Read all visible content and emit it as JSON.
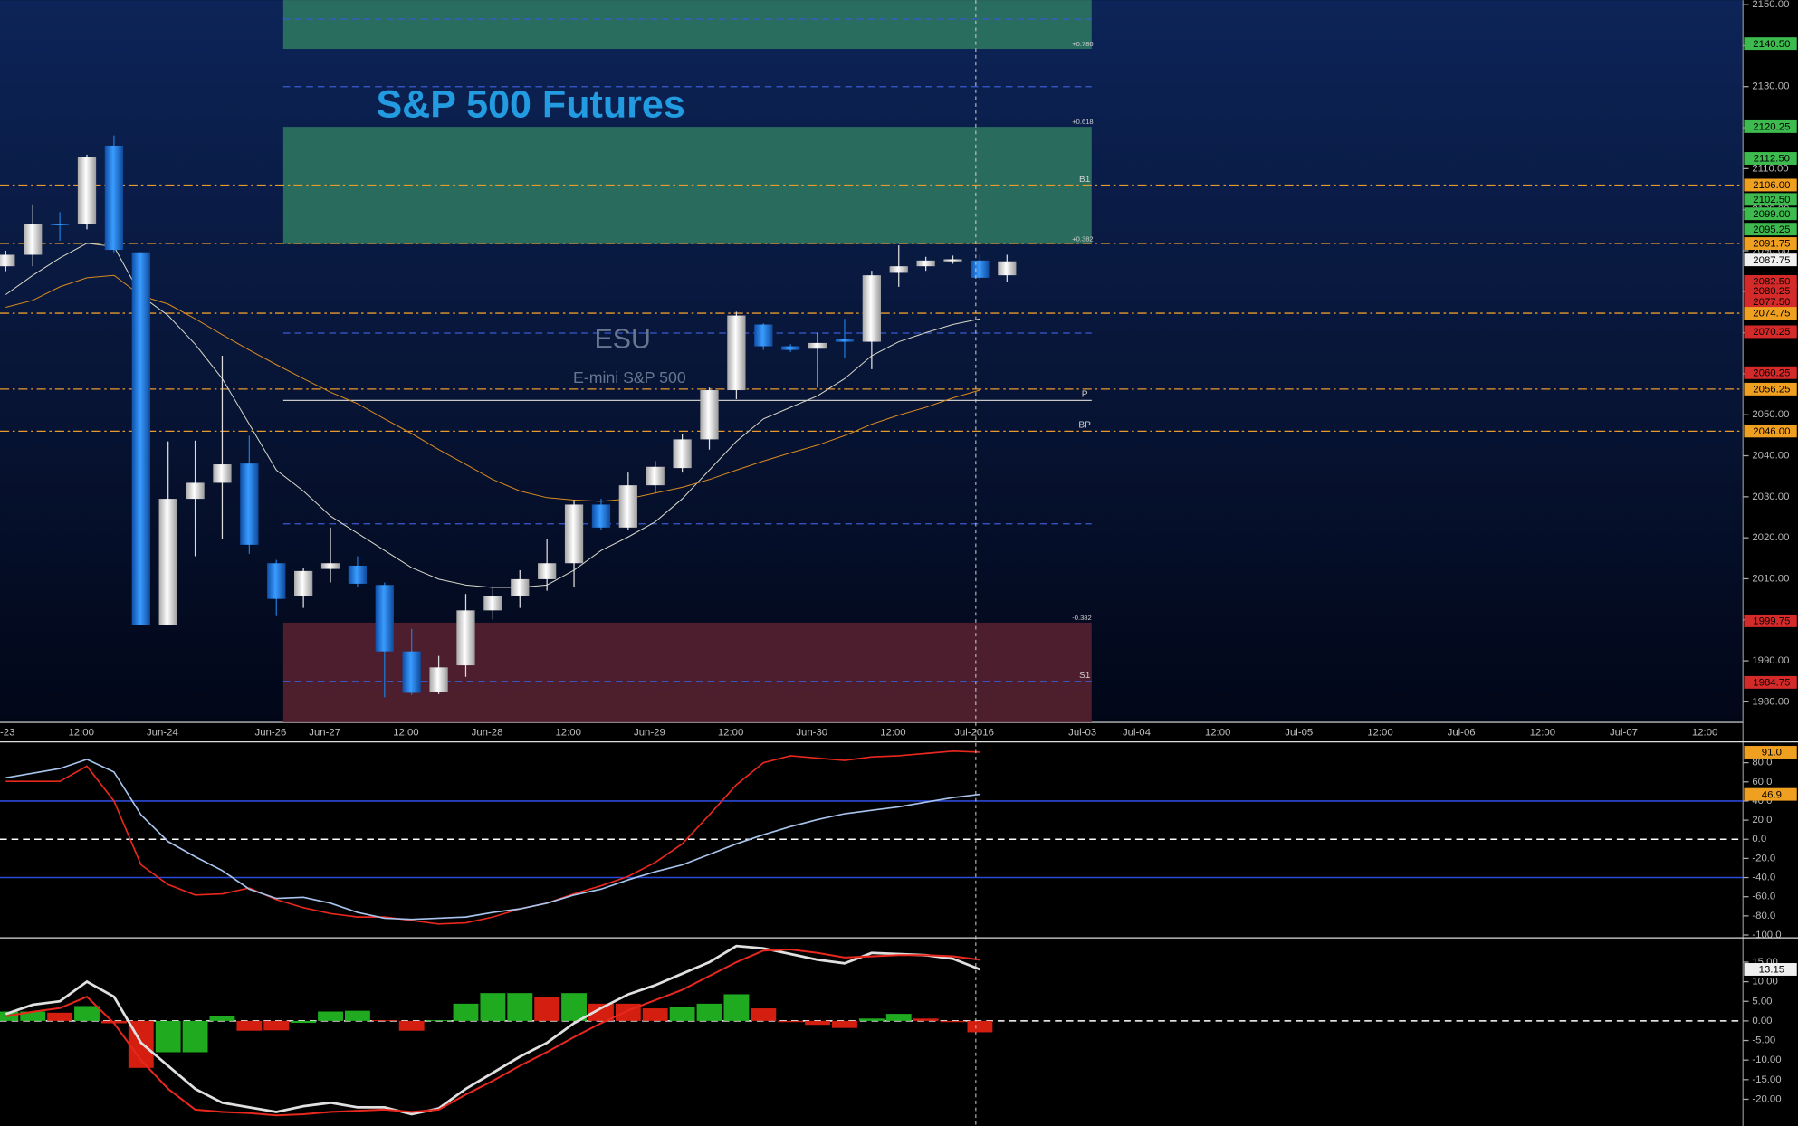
{
  "chart_data": [
    {
      "type": "candlestick",
      "title": "S&P 500 Futures",
      "symbol": "ESU",
      "subtitle": "E-mini S&P 500",
      "categories": [
        "-23",
        null,
        null,
        "12:00",
        null,
        null,
        "Jun-24",
        null,
        null,
        null,
        "Jun-26",
        null,
        "Jun-27",
        null,
        null,
        "12:00",
        null,
        null,
        "Jun-28",
        null,
        null,
        "12:00",
        null,
        null,
        "Jun-29",
        null,
        null,
        "12:00",
        null,
        null,
        "Jun-30",
        null,
        null,
        "12:00",
        null,
        null,
        "Jul-2016",
        null,
        null,
        null,
        "Jul-03",
        null,
        "Jul-04",
        null,
        null,
        "12:00",
        null,
        null,
        "Jul-05",
        null,
        null,
        "12:00",
        null,
        null,
        "Jul-06",
        null,
        null,
        "12:00",
        null,
        null,
        "Jul-07",
        null,
        null,
        "12:00",
        null
      ],
      "open": [
        2086.2,
        2089.0,
        2096.6,
        2096.6,
        2115.6,
        2089.6,
        1998.7,
        2029.5,
        2033.4,
        2038.1,
        2013.8,
        2005.7,
        2012.4,
        2013.2,
        2008.5,
        1992.3,
        1982.5,
        1988.9,
        2002.3,
        2005.7,
        2009.9,
        2013.8,
        2028.1,
        2022.5,
        2032.8,
        2037.0,
        2044.0,
        2056.0,
        2072.0,
        2066.7,
        2066.1,
        2068.4,
        2067.8,
        2084.6,
        2086.2,
        2087.4,
        2087.6,
        2084.0,
        null,
        null,
        null,
        null,
        null,
        null,
        null,
        null,
        null,
        null,
        null,
        null,
        null,
        null,
        null,
        null,
        null,
        null,
        null,
        null,
        null,
        null,
        null,
        null,
        null,
        null,
        null
      ],
      "high": [
        2090.0,
        2101.3,
        2099.4,
        2113.4,
        2118.1,
        2089.6,
        2043.5,
        2043.7,
        2064.4,
        2044.9,
        2014.6,
        2012.7,
        2022.5,
        2015.5,
        2009.1,
        1997.8,
        1991.2,
        2006.3,
        2008.2,
        2012.1,
        2019.7,
        2029.2,
        2029.5,
        2035.9,
        2038.7,
        2045.4,
        2056.6,
        2075.1,
        2072.3,
        2067.2,
        2070.0,
        2073.4,
        2085.1,
        2091.3,
        2088.5,
        2088.8,
        2089.0,
        2089.0,
        null,
        null,
        null,
        null,
        null,
        null,
        null,
        null,
        null,
        null,
        null,
        null,
        null,
        null,
        null,
        null,
        null,
        null,
        null,
        null,
        null,
        null,
        null,
        null,
        null,
        null,
        null
      ],
      "low": [
        2085.0,
        2086.2,
        2092.4,
        2095.2,
        2089.6,
        1998.7,
        1998.7,
        2015.5,
        2019.7,
        2016.1,
        2000.9,
        2002.9,
        2009.1,
        2007.9,
        1981.1,
        1981.7,
        1981.9,
        1986.1,
        2000.1,
        2002.9,
        2007.1,
        2007.9,
        2021.9,
        2021.9,
        2030.9,
        2035.9,
        2041.5,
        2053.8,
        2065.8,
        2065.3,
        2056.6,
        2063.9,
        2061.1,
        2081.2,
        2085.1,
        2086.8,
        2082.9,
        2082.3,
        null,
        null,
        null,
        null,
        null,
        null,
        null,
        null,
        null,
        null,
        null,
        null,
        null,
        null,
        null,
        null,
        null,
        null,
        null,
        null,
        null,
        null,
        null,
        null,
        null,
        null,
        null
      ],
      "close": [
        2089.0,
        2096.6,
        2096.3,
        2112.8,
        2090.2,
        1998.7,
        2029.5,
        2033.4,
        2037.9,
        2018.3,
        2005.1,
        2011.9,
        2013.8,
        2008.8,
        1992.3,
        1982.2,
        1988.4,
        2002.3,
        2005.7,
        2009.9,
        2013.8,
        2028.1,
        2022.5,
        2032.8,
        2037.3,
        2044.0,
        2056.0,
        2074.2,
        2066.7,
        2065.8,
        2067.5,
        2067.8,
        2084.0,
        2086.2,
        2087.6,
        2087.9,
        2083.4,
        2087.4,
        null,
        null,
        null,
        null,
        null,
        null,
        null,
        null,
        null,
        null,
        null,
        null,
        null,
        null,
        null,
        null,
        null,
        null,
        null,
        null,
        null,
        null,
        null,
        null,
        null,
        null,
        null
      ],
      "up_color": "#e6e6e6",
      "down_color": "#1c78d8",
      "lines": [
        {
          "color": "#d8d8c8",
          "values": [
            2079.3,
            2084.0,
            2088.2,
            2091.8,
            2091.0,
            2079.0,
            2074.2,
            2067.2,
            2058.8,
            2047.7,
            2036.5,
            2031.4,
            2025.3,
            2021.1,
            2016.9,
            2012.7,
            2009.9,
            2008.5,
            2007.9,
            2007.9,
            2008.5,
            2012.1,
            2016.9,
            2020.2,
            2023.9,
            2029.5,
            2036.5,
            2043.5,
            2049.0,
            2051.8,
            2054.6,
            2058.8,
            2064.4,
            2067.8,
            2070.0,
            2072.0,
            2073.4
          ]
        },
        {
          "color": "#d88a20",
          "values": [
            2076.2,
            2077.9,
            2081.2,
            2083.4,
            2084.0,
            2079.0,
            2077.0,
            2073.4,
            2069.5,
            2065.8,
            2062.2,
            2058.8,
            2055.5,
            2052.7,
            2049.0,
            2045.4,
            2041.5,
            2037.9,
            2034.2,
            2031.4,
            2029.8,
            2029.2,
            2028.9,
            2029.5,
            2030.9,
            2032.3,
            2034.2,
            2036.5,
            2038.7,
            2040.7,
            2042.6,
            2044.9,
            2047.7,
            2049.9,
            2051.8,
            2054.1,
            2056.0
          ]
        }
      ],
      "zones": [
        {
          "range": [
            2139.2,
            2151.1
          ],
          "color": "#2f7a62"
        },
        {
          "range": [
            2091.6,
            2120.2
          ],
          "color": "#2f7a62"
        },
        {
          "range": [
            1975,
            1999.3
          ],
          "color": "#5a2230"
        }
      ],
      "annotations": [
        {
          "value": 2139.2,
          "label": "+0.786"
        },
        {
          "value": 2120.2,
          "label": "+0.618"
        },
        {
          "value": 2091.6,
          "label": "+0.382"
        },
        {
          "value": 1999.3,
          "label": "-0.382"
        }
      ],
      "levels": [
        {
          "value": 2106,
          "color": "#e89a2c",
          "style": "dashdot",
          "label": "B1"
        },
        {
          "value": 2091.75,
          "color": "#e89a2c",
          "style": "dashdot"
        },
        {
          "value": 2074.75,
          "color": "#e89a2c",
          "style": "dashdot"
        },
        {
          "value": 2056.25,
          "color": "#e89a2c",
          "style": "dashdot"
        },
        {
          "value": 2046,
          "color": "#e89a2c",
          "style": "dashdot",
          "label": "BP"
        },
        {
          "value": 2053.5,
          "color": "#c8c8c8",
          "style": "solid",
          "label": "P"
        },
        {
          "value": 2146.5,
          "color": "#3a5ad0",
          "style": "dash"
        },
        {
          "value": 2130,
          "color": "#3a5ad0",
          "style": "dash"
        },
        {
          "value": 2069.9,
          "color": "#3a5ad0",
          "style": "dash"
        },
        {
          "value": 2023.4,
          "color": "#3a5ad0",
          "style": "dash"
        },
        {
          "value": 1985,
          "color": "#3a5ad0",
          "style": "dash",
          "label": "S1"
        }
      ],
      "ylim": [
        1975,
        2151.1
      ],
      "yticks": [
        {
          "value": 1980,
          "label": "1980.00"
        },
        {
          "value": 1990,
          "label": "1990.00"
        },
        {
          "value": 2000,
          "label": "2000.00"
        },
        {
          "value": 2010,
          "label": "2010.00"
        },
        {
          "value": 2020,
          "label": "2020.00"
        },
        {
          "value": 2030,
          "label": "2030.00"
        },
        {
          "value": 2040,
          "label": "2040.00"
        },
        {
          "value": 2050,
          "label": "2050.00"
        },
        {
          "value": 2060,
          "label": "2060.00"
        },
        {
          "value": 2070,
          "label": "2070.00"
        },
        {
          "value": 2080,
          "label": "2080.00"
        },
        {
          "value": 2090,
          "label": "2090.00"
        },
        {
          "value": 2100,
          "label": "2100.00"
        },
        {
          "value": 2110,
          "label": "2110.00"
        },
        {
          "value": 2120,
          "label": "2120.00"
        },
        {
          "value": 2130,
          "label": "2130.00"
        },
        {
          "value": 2140,
          "label": "2140.00"
        },
        {
          "value": 2150,
          "label": "2150.00"
        }
      ],
      "flags": [
        {
          "value": 2140.5,
          "label": "2140.50",
          "color": "#3dbb4e"
        },
        {
          "value": 2120.25,
          "label": "2120.25",
          "color": "#3dbb4e"
        },
        {
          "value": 2112.5,
          "label": "2112.50",
          "color": "#3dbb4e"
        },
        {
          "value": 2106,
          "label": "2106.00",
          "color": "#f0a020"
        },
        {
          "value": 2102.5,
          "label": "2102.50",
          "color": "#3dbb4e"
        },
        {
          "value": 2099,
          "label": "2099.00",
          "color": "#3dbb4e"
        },
        {
          "value": 2095.25,
          "label": "2095.25",
          "color": "#3dbb4e"
        },
        {
          "value": 2091.75,
          "label": "2091.75",
          "color": "#f0a020"
        },
        {
          "value": 2087.75,
          "label": "2087.75",
          "color": "#f0f0f0"
        },
        {
          "value": 2082.5,
          "label": "2082.50",
          "color": "#d42a2a"
        },
        {
          "value": 2080.25,
          "label": "2080.25",
          "color": "#d42a2a"
        },
        {
          "value": 2077.5,
          "label": "2077.50",
          "color": "#d42a2a"
        },
        {
          "value": 2074.75,
          "label": "2074.75",
          "color": "#f0a020"
        },
        {
          "value": 2070.25,
          "label": "2070.25",
          "color": "#d42a2a"
        },
        {
          "value": 2060.25,
          "label": "2060.25",
          "color": "#d42a2a"
        },
        {
          "value": 2056.25,
          "label": "2056.25",
          "color": "#f0a020"
        },
        {
          "value": 2046,
          "label": "2046.00",
          "color": "#f0a020"
        },
        {
          "value": 1999.75,
          "label": "1999.75",
          "color": "#d42a2a"
        },
        {
          "value": 1984.75,
          "label": "1984.75",
          "color": "#d42a2a"
        }
      ]
    },
    {
      "type": "line",
      "series": [
        {
          "color": "#e8281e",
          "values": [
            60.6,
            60.6,
            60.6,
            76.4,
            40.0,
            -26.7,
            -47.3,
            -58.2,
            -57.0,
            -50.9,
            -63.0,
            -71.5,
            -77.6,
            -81.2,
            -81.2,
            -84.8,
            -88.5,
            -87.3,
            -81.2,
            -72.7,
            -66.7,
            -57.0,
            -48.5,
            -38.8,
            -24.2,
            -4.8,
            25.5,
            57.0,
            80.0,
            87.3,
            84.8,
            82.4,
            86.1,
            87.3,
            89.7,
            92.1,
            91.0
          ]
        },
        {
          "color": "#a8c4ec",
          "values": [
            64.2,
            69.1,
            73.9,
            83.6,
            70.3,
            25.5,
            -2.4,
            -18.2,
            -32.7,
            -52.1,
            -61.8,
            -60.6,
            -66.7,
            -76.4,
            -82.4,
            -83.6,
            -82.4,
            -81.2,
            -76.4,
            -72.7,
            -66.7,
            -58.2,
            -52.1,
            -42.4,
            -33.9,
            -26.7,
            -15.8,
            -4.8,
            4.8,
            13.3,
            20.6,
            26.7,
            30.3,
            33.9,
            38.8,
            43.6,
            46.9
          ]
        }
      ],
      "hlines": [
        {
          "value": 40,
          "color": "#2a4ad8",
          "style": "solid"
        },
        {
          "value": -40,
          "color": "#2a4ad8",
          "style": "solid"
        },
        {
          "value": 0,
          "color": "#ffffff",
          "style": "dash"
        }
      ],
      "ylim": [
        -103,
        100.6
      ],
      "yticks": [
        {
          "value": -100,
          "label": "-100.0"
        },
        {
          "value": -80,
          "label": "-80.0"
        },
        {
          "value": -60,
          "label": "-60.0"
        },
        {
          "value": -40,
          "label": "-40.0"
        },
        {
          "value": -20,
          "label": "-20.0"
        },
        {
          "value": 0,
          "label": "0.0"
        },
        {
          "value": 20,
          "label": "20.0"
        },
        {
          "value": 40,
          "label": "40.0"
        },
        {
          "value": 60,
          "label": "60.0"
        },
        {
          "value": 80,
          "label": "80.0"
        }
      ],
      "flags": [
        {
          "value": 91,
          "label": "91.0",
          "color": "#f0a020"
        },
        {
          "value": 46.9,
          "label": "46.9",
          "color": "#f0a020"
        }
      ]
    },
    {
      "type": "combo",
      "bars": [
        2.4,
        2.4,
        2.1,
        3.8,
        -0.6,
        -12,
        -8,
        -8,
        1.2,
        -2.5,
        -2.4,
        -0.5,
        2.4,
        2.6,
        0.2,
        -2.5,
        0.2,
        4.4,
        7.1,
        7.1,
        6.2,
        7.1,
        4.4,
        4.4,
        3.2,
        3.5,
        4.4,
        6.8,
        3.2,
        -0.3,
        -1,
        -1.8,
        0.6,
        1.8,
        0.6,
        -0.3,
        -2.9
      ],
      "bar_colors": [
        "#1faa1f",
        "#1faa1f",
        "#d41e10",
        "#1faa1f",
        "#d41e10",
        "#d41e10",
        "#1faa1f",
        "#1faa1f",
        "#1faa1f",
        "#d41e10",
        "#d41e10",
        "#1faa1f",
        "#1faa1f",
        "#1faa1f",
        "#d41e10",
        "#d41e10",
        "#1faa1f",
        "#1faa1f",
        "#1faa1f",
        "#1faa1f",
        "#d41e10",
        "#1faa1f",
        "#d41e10",
        "#d41e10",
        "#d41e10",
        "#1faa1f",
        "#1faa1f",
        "#1faa1f",
        "#d41e10",
        "#d41e10",
        "#d41e10",
        "#d41e10",
        "#1faa1f",
        "#1faa1f",
        "#d41e10",
        "#d41e10",
        "#d41e10"
      ],
      "series": [
        {
          "color": "#e0e0e0",
          "values": [
            1.76,
            4.12,
            5.0,
            10.0,
            6.18,
            -5.59,
            -11.47,
            -17.35,
            -20.88,
            -22.06,
            -23.24,
            -21.76,
            -20.88,
            -22.06,
            -22.06,
            -23.82,
            -22.35,
            -17.35,
            -13.24,
            -9.12,
            -5.59,
            -0.59,
            3.24,
            6.76,
            9.12,
            12.06,
            15.0,
            19.12,
            18.53,
            17.06,
            15.59,
            14.71,
            17.35,
            17.06,
            16.76,
            15.88,
            13.15
          ]
        },
        {
          "color": "#e8281e",
          "values": [
            1.18,
            2.35,
            3.24,
            6.18,
            -0.59,
            -10.0,
            -17.35,
            -22.65,
            -23.24,
            -23.53,
            -24.12,
            -23.82,
            -23.24,
            -22.94,
            -22.65,
            -23.24,
            -22.65,
            -18.82,
            -15.29,
            -11.47,
            -7.94,
            -4.12,
            -0.59,
            2.65,
            5.29,
            7.94,
            11.47,
            15.0,
            17.94,
            18.24,
            17.35,
            16.18,
            16.47,
            16.76,
            16.76,
            16.47,
            15.59
          ]
        }
      ],
      "hlines": [
        {
          "value": 0,
          "color": "#ffffff",
          "style": "dash"
        }
      ],
      "ylim": [
        -26.8,
        20.9
      ],
      "yticks": [
        {
          "value": -20,
          "label": "-20.00"
        },
        {
          "value": -15,
          "label": "-15.00"
        },
        {
          "value": -10,
          "label": "-10.00"
        },
        {
          "value": -5,
          "label": "-5.00"
        },
        {
          "value": 0,
          "label": "0.00"
        },
        {
          "value": 5,
          "label": "5.00"
        },
        {
          "value": 10,
          "label": "10.00"
        },
        {
          "value": 15,
          "label": "15.00"
        }
      ],
      "flags": [
        {
          "value": 13.15,
          "label": "13.15",
          "color": "#f0f0f0"
        }
      ]
    }
  ]
}
